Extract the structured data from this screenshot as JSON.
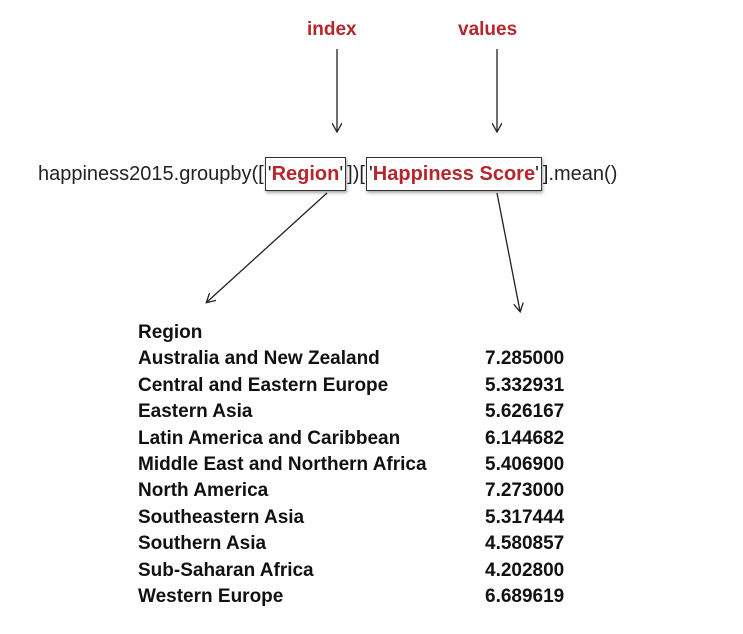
{
  "labels": {
    "index": "index",
    "values": "values"
  },
  "code": {
    "prefix": "happiness2015.groupby([",
    "region_quote_open": "'",
    "region": "Region",
    "region_quote_close": "'",
    "middle": "])[",
    "score_quote_open": "'",
    "score": "Happiness Score",
    "score_quote_close": "'",
    "suffix": "].mean()"
  },
  "output": {
    "index_name": "Region",
    "rows": [
      {
        "region": "Australia and New Zealand",
        "value": "7.285000"
      },
      {
        "region": "Central and Eastern Europe",
        "value": "5.332931"
      },
      {
        "region": "Eastern Asia",
        "value": "5.626167"
      },
      {
        "region": "Latin America and Caribbean",
        "value": "6.144682"
      },
      {
        "region": "Middle East and Northern Africa",
        "value": "5.406900"
      },
      {
        "region": "North America",
        "value": "7.273000"
      },
      {
        "region": "Southeastern Asia",
        "value": "5.317444"
      },
      {
        "region": "Southern Asia",
        "value": "4.580857"
      },
      {
        "region": "Sub-Saharan Africa",
        "value": "4.202800"
      },
      {
        "region": "Western Europe",
        "value": "6.689619"
      }
    ]
  },
  "colors": {
    "accent": "#b5262d",
    "text": "#111111"
  }
}
